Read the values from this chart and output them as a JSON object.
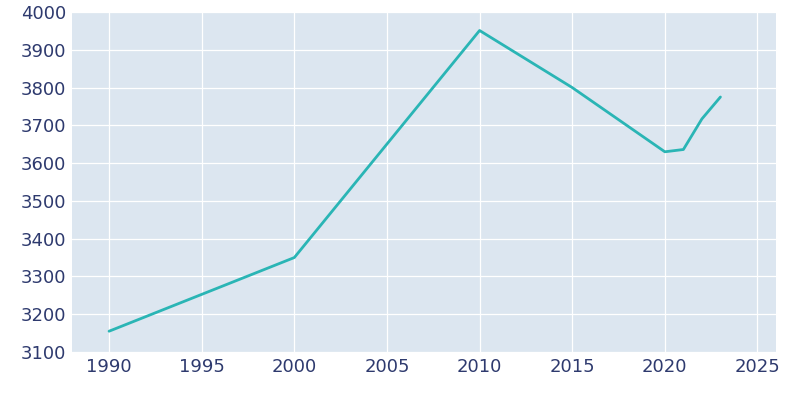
{
  "years": [
    1990,
    2000,
    2010,
    2015,
    2020,
    2021,
    2022,
    2023
  ],
  "population": [
    3155,
    3350,
    3951,
    3800,
    3630,
    3636,
    3717,
    3775
  ],
  "line_color": "#2ab5b5",
  "plot_bg_color": "#dce6f0",
  "fig_bg_color": "#ffffff",
  "grid_color": "#ffffff",
  "tick_color": "#2e3a6e",
  "xlim": [
    1988,
    2026
  ],
  "ylim": [
    3100,
    4000
  ],
  "xticks": [
    1990,
    1995,
    2000,
    2005,
    2010,
    2015,
    2020,
    2025
  ],
  "yticks": [
    3100,
    3200,
    3300,
    3400,
    3500,
    3600,
    3700,
    3800,
    3900,
    4000
  ],
  "linewidth": 2.0,
  "figsize": [
    8.0,
    4.0
  ],
  "dpi": 100,
  "tick_fontsize": 13
}
